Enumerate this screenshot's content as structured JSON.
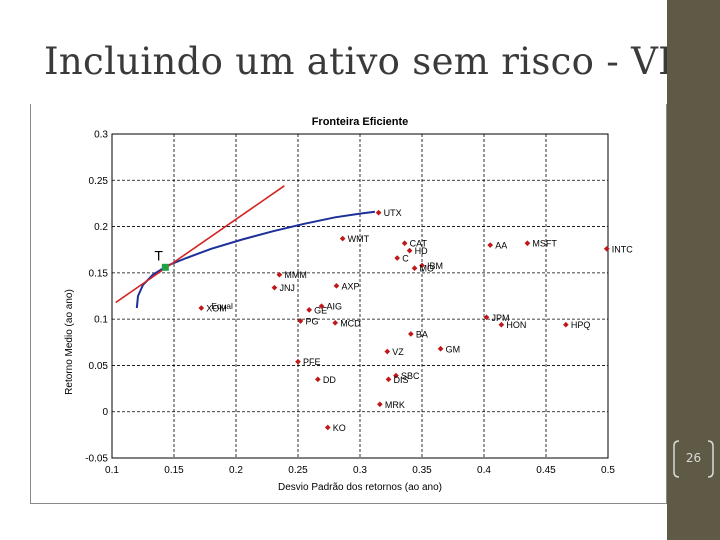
{
  "slide": {
    "title": "Incluindo um ativo sem risco - VI",
    "page_number": "26"
  },
  "colors": {
    "sidebar": "#5f5a45",
    "frontier": "#1d2f9a",
    "cml": "#d42323",
    "point": "#c01818",
    "tangency": "#22a045"
  },
  "chart_data": {
    "type": "scatter",
    "title": "Fronteira Eficiente",
    "xlabel": "Desvio Padrão dos retornos (ao ano)",
    "ylabel": "Retorno Medio (ao ano)",
    "xlim": [
      0.1,
      0.5
    ],
    "ylim": [
      -0.05,
      0.3
    ],
    "xticks": [
      "0.1",
      "0.15",
      "0.2",
      "0.25",
      "0.3",
      "0.35",
      "0.4",
      "0.45",
      "0.5"
    ],
    "yticks": [
      "-0.05",
      "0",
      "0.05",
      "0.1",
      "0.15",
      "0.2",
      "0.25",
      "0.3"
    ],
    "grid": true,
    "points": [
      {
        "label": "UTX",
        "x": 0.315,
        "y": 0.215
      },
      {
        "label": "WMT",
        "x": 0.286,
        "y": 0.187
      },
      {
        "label": "CAT",
        "x": 0.336,
        "y": 0.182
      },
      {
        "label": "HD",
        "x": 0.34,
        "y": 0.174
      },
      {
        "label": "C",
        "x": 0.33,
        "y": 0.166
      },
      {
        "label": "IBM",
        "x": 0.35,
        "y": 0.158
      },
      {
        "label": "MO",
        "x": 0.344,
        "y": 0.155
      },
      {
        "label": "AA",
        "x": 0.405,
        "y": 0.18
      },
      {
        "label": "MSFT",
        "x": 0.435,
        "y": 0.182
      },
      {
        "label": "INTC",
        "x": 0.499,
        "y": 0.176
      },
      {
        "label": "MMM",
        "x": 0.235,
        "y": 0.148
      },
      {
        "label": "JNJ",
        "x": 0.231,
        "y": 0.134
      },
      {
        "label": "AXP",
        "x": 0.281,
        "y": 0.136
      },
      {
        "label": "XOM",
        "x": 0.172,
        "y": 0.112
      },
      {
        "label": "GE",
        "x": 0.259,
        "y": 0.11
      },
      {
        "label": "AIG",
        "x": 0.269,
        "y": 0.114
      },
      {
        "label": "PG",
        "x": 0.252,
        "y": 0.098
      },
      {
        "label": "MCD",
        "x": 0.28,
        "y": 0.096
      },
      {
        "label": "JPM",
        "x": 0.402,
        "y": 0.102
      },
      {
        "label": "HON",
        "x": 0.414,
        "y": 0.094
      },
      {
        "label": "HPQ",
        "x": 0.466,
        "y": 0.094
      },
      {
        "label": "BA",
        "x": 0.341,
        "y": 0.084
      },
      {
        "label": "GM",
        "x": 0.365,
        "y": 0.068
      },
      {
        "label": "VZ",
        "x": 0.322,
        "y": 0.065
      },
      {
        "label": "PFE",
        "x": 0.25,
        "y": 0.054
      },
      {
        "label": "DD",
        "x": 0.266,
        "y": 0.035
      },
      {
        "label": "SBC",
        "x": 0.329,
        "y": 0.039
      },
      {
        "label": "DIS",
        "x": 0.323,
        "y": 0.035
      },
      {
        "label": "MRK",
        "x": 0.316,
        "y": 0.008
      },
      {
        "label": "KO",
        "x": 0.274,
        "y": -0.017
      }
    ],
    "annotations": [
      {
        "label": "Equal",
        "x": 0.18,
        "y": 0.114
      }
    ],
    "tangency": {
      "label": "T",
      "x": 0.143,
      "y": 0.156
    },
    "frontier": [
      {
        "x": 0.12,
        "y": 0.112
      },
      {
        "x": 0.121,
        "y": 0.125
      },
      {
        "x": 0.125,
        "y": 0.137
      },
      {
        "x": 0.133,
        "y": 0.148
      },
      {
        "x": 0.145,
        "y": 0.158
      },
      {
        "x": 0.16,
        "y": 0.166
      },
      {
        "x": 0.18,
        "y": 0.176
      },
      {
        "x": 0.205,
        "y": 0.186
      },
      {
        "x": 0.23,
        "y": 0.195
      },
      {
        "x": 0.255,
        "y": 0.203
      },
      {
        "x": 0.28,
        "y": 0.21
      },
      {
        "x": 0.3,
        "y": 0.214
      },
      {
        "x": 0.312,
        "y": 0.216
      }
    ],
    "capital_market_line": [
      {
        "x": 0.103,
        "y": 0.118
      },
      {
        "x": 0.239,
        "y": 0.244
      }
    ]
  }
}
